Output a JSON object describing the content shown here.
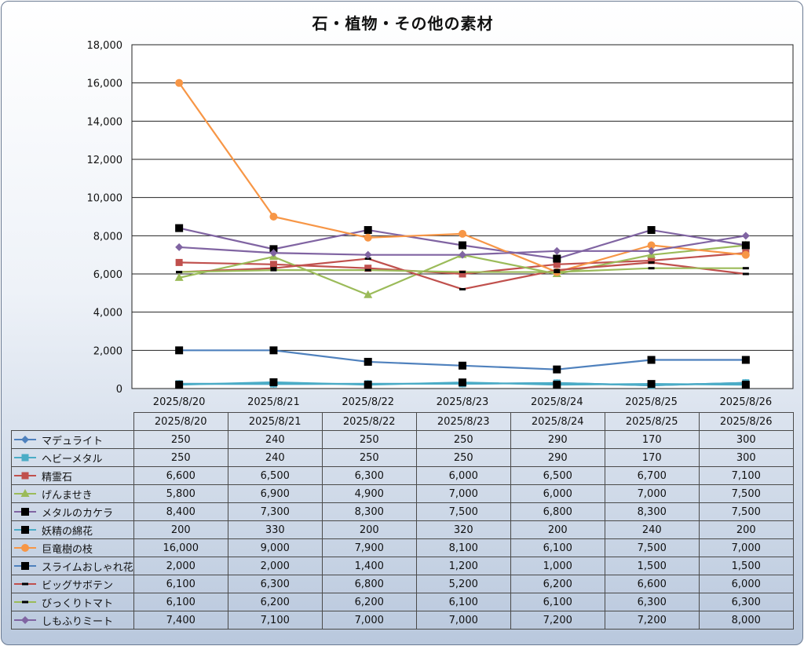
{
  "chart_data": {
    "type": "line",
    "title": "石・植物・その他の素材",
    "categories": [
      "2025/8/20",
      "2025/8/21",
      "2025/8/22",
      "2025/8/23",
      "2025/8/24",
      "2025/8/25",
      "2025/8/26"
    ],
    "ylim": [
      0,
      18000
    ],
    "yticks": [
      0,
      2000,
      4000,
      6000,
      8000,
      10000,
      12000,
      14000,
      16000,
      18000
    ],
    "ytick_labels": [
      "0",
      "2,000",
      "4,000",
      "6,000",
      "8,000",
      "10,000",
      "12,000",
      "14,000",
      "16,000",
      "18,000"
    ],
    "grid": true,
    "legend": "data-table-below",
    "series": [
      {
        "name": "マデュライト",
        "color": "#4f81bd",
        "marker": "diamond",
        "values": [
          250,
          240,
          250,
          250,
          290,
          170,
          300
        ],
        "labels": [
          "250",
          "240",
          "250",
          "250",
          "290",
          "170",
          "300"
        ]
      },
      {
        "name": "ヘビーメタル",
        "color": "#4bacc6",
        "marker": "square",
        "values": [
          250,
          240,
          250,
          250,
          290,
          170,
          300
        ],
        "labels": [
          "250",
          "240",
          "250",
          "250",
          "290",
          "170",
          "300"
        ]
      },
      {
        "name": "精霊石",
        "color": "#c0504d",
        "marker": "square",
        "values": [
          6600,
          6500,
          6300,
          6000,
          6500,
          6700,
          7100
        ],
        "labels": [
          "6,600",
          "6,500",
          "6,300",
          "6,000",
          "6,500",
          "6,700",
          "7,100"
        ]
      },
      {
        "name": "げんませき",
        "color": "#9bbb59",
        "marker": "triangle",
        "values": [
          5800,
          6900,
          4900,
          7000,
          6000,
          7000,
          7500
        ],
        "labels": [
          "5,800",
          "6,900",
          "4,900",
          "7,000",
          "6,000",
          "7,000",
          "7,500"
        ]
      },
      {
        "name": "メタルのカケラ",
        "color": "#8064a2",
        "marker": "bigsquare",
        "values": [
          8400,
          7300,
          8300,
          7500,
          6800,
          8300,
          7500
        ],
        "labels": [
          "8,400",
          "7,300",
          "8,300",
          "7,500",
          "6,800",
          "8,300",
          "7,500"
        ]
      },
      {
        "name": "妖精の綿花",
        "color": "#4bacc6",
        "marker": "bigsquare",
        "values": [
          200,
          330,
          200,
          320,
          200,
          240,
          200
        ],
        "labels": [
          "200",
          "330",
          "200",
          "320",
          "200",
          "240",
          "200"
        ]
      },
      {
        "name": "巨竜樹の枝",
        "color": "#f79646",
        "marker": "circle",
        "values": [
          16000,
          9000,
          7900,
          8100,
          6100,
          7500,
          7000
        ],
        "labels": [
          "16,000",
          "9,000",
          "7,900",
          "8,100",
          "6,100",
          "7,500",
          "7,000"
        ]
      },
      {
        "name": "スライムおしゃれ花",
        "color": "#4f81bd",
        "marker": "bigsquare",
        "values": [
          2000,
          2000,
          1400,
          1200,
          1000,
          1500,
          1500
        ],
        "labels": [
          "2,000",
          "2,000",
          "1,400",
          "1,200",
          "1,000",
          "1,500",
          "1,500"
        ]
      },
      {
        "name": "ビッグサボテン",
        "color": "#c0504d",
        "marker": "dash",
        "values": [
          6100,
          6300,
          6800,
          5200,
          6200,
          6600,
          6000
        ],
        "labels": [
          "6,100",
          "6,300",
          "6,800",
          "5,200",
          "6,200",
          "6,600",
          "6,000"
        ]
      },
      {
        "name": "びっくりトマト",
        "color": "#9bbb59",
        "marker": "dash",
        "values": [
          6100,
          6200,
          6200,
          6100,
          6100,
          6300,
          6300
        ],
        "labels": [
          "6,100",
          "6,200",
          "6,200",
          "6,100",
          "6,100",
          "6,300",
          "6,300"
        ]
      },
      {
        "name": "しもふりミート",
        "color": "#8064a2",
        "marker": "diamond",
        "values": [
          7400,
          7100,
          7000,
          7000,
          7200,
          7200,
          8000
        ],
        "labels": [
          "7,400",
          "7,100",
          "7,000",
          "7,000",
          "7,200",
          "7,200",
          "8,000"
        ]
      }
    ]
  }
}
